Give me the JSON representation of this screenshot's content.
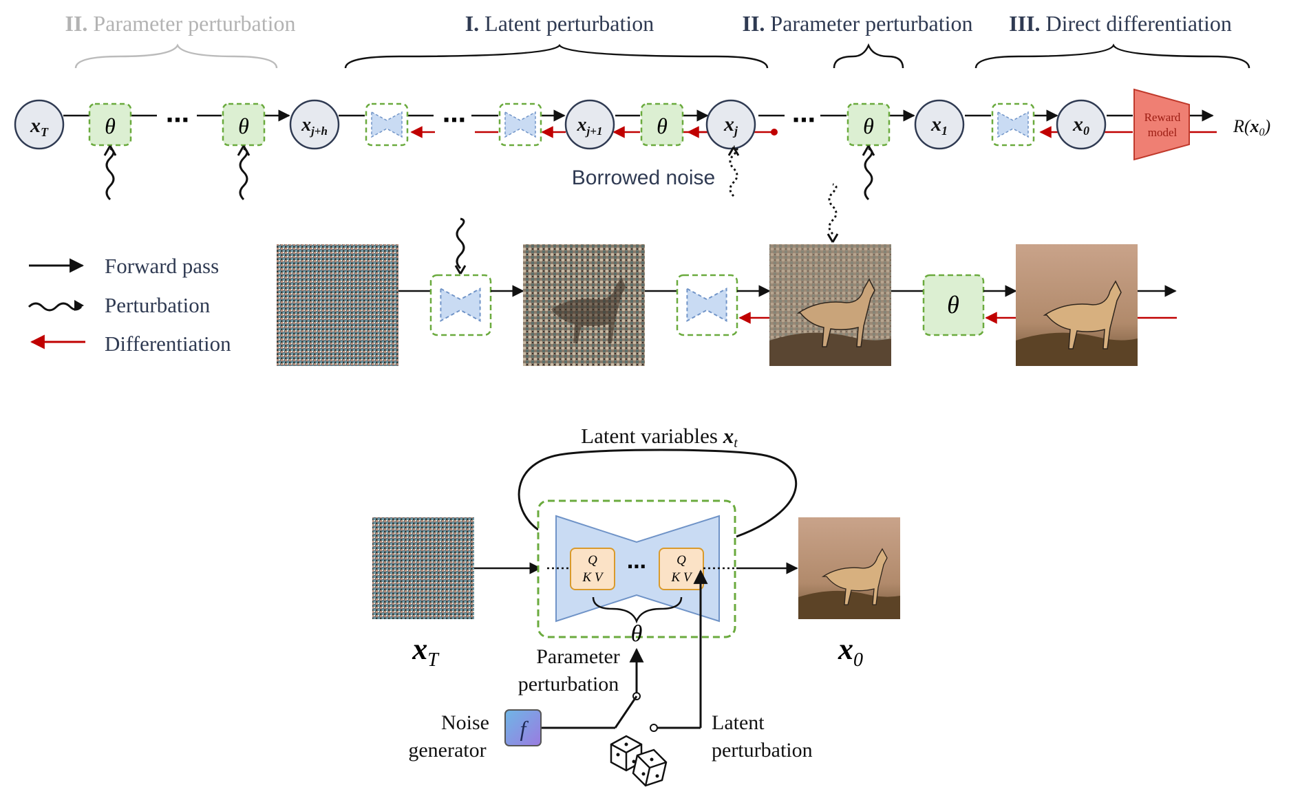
{
  "colors": {
    "navy": "#2f3a52",
    "muted": "#b3b3b3",
    "green_dash": "#6aaa3d",
    "green_fill": "#dcefd2",
    "blue_fill": "#c9dbf3",
    "blue_edge": "#6f93c7",
    "red": "#c00000",
    "reward_fill": "#ef7f73",
    "reward_edge": "#c0392b",
    "qkv_fill": "#fbe2c6",
    "qkv_edge": "#d99a2b",
    "node_fill": "#e6e9ef",
    "node_edge": "#2f3a52"
  },
  "top": {
    "sections": [
      {
        "num": "II.",
        "label": "Parameter perturbation",
        "state": "muted"
      },
      {
        "num": "I.",
        "label": "Latent perturbation",
        "state": "active"
      },
      {
        "num": "II.",
        "label": "Parameter perturbation",
        "state": "active"
      },
      {
        "num": "III.",
        "label": "Direct differentiation",
        "state": "active"
      }
    ],
    "nodes": {
      "xT": "x_T",
      "xjh": "x_{j+h}",
      "xj1": "x_{j+1}",
      "xj": "x_j",
      "x1": "x_1",
      "x0": "x_0"
    },
    "theta": "θ",
    "ellipsis": "⋯",
    "borrowed_noise": "Borrowed noise",
    "reward_model": [
      "Reward",
      "model"
    ],
    "reward_output": "R(x_0)"
  },
  "legend": [
    {
      "icon": "forward-arrow-icon",
      "label": "Forward pass"
    },
    {
      "icon": "wavy-arrow-icon",
      "label": "Perturbation"
    },
    {
      "icon": "red-arrow-icon",
      "label": "Differentiation"
    }
  ],
  "bottom": {
    "latent_variables_label": "Latent variables",
    "latent_variables_symbol": "x_t",
    "qkv": [
      "Q",
      "K V"
    ],
    "theta": "θ",
    "input_label": "x_T",
    "output_label": "x_0",
    "parameter_perturbation": [
      "Parameter",
      "perturbation"
    ],
    "noise_generator": [
      "Noise",
      "generator"
    ],
    "noise_icon_letter": "f",
    "latent_perturbation": [
      "Latent",
      "perturbation"
    ]
  }
}
